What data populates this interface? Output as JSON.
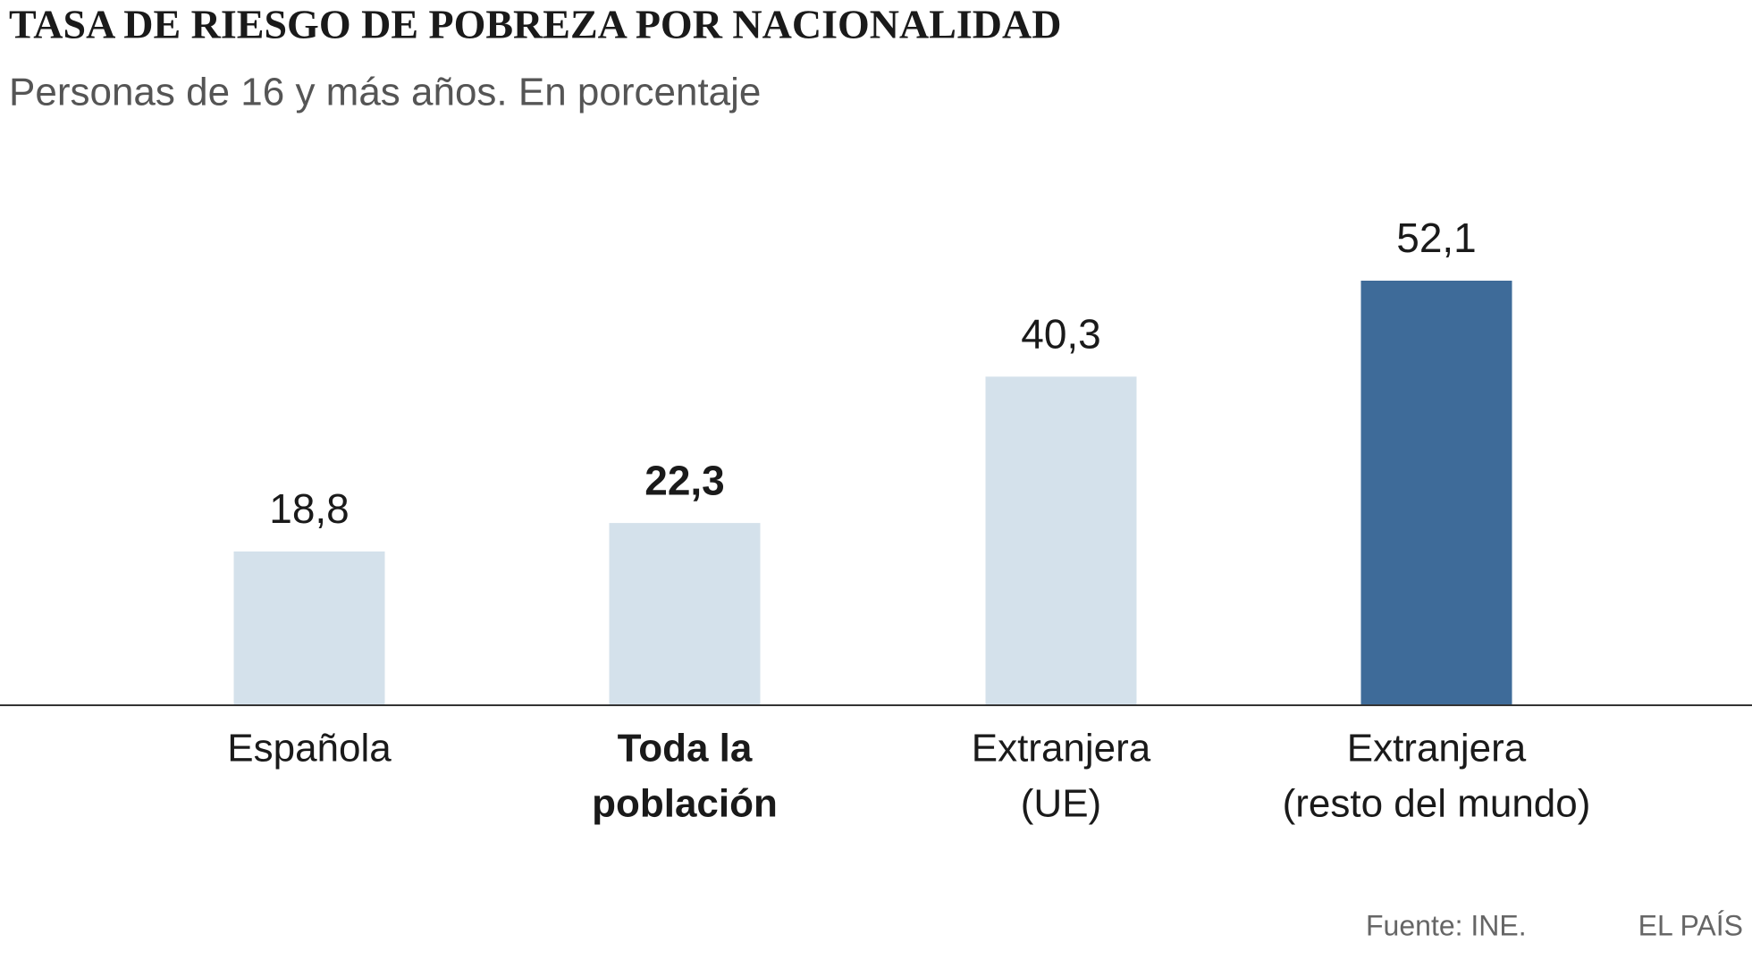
{
  "chart_data": {
    "type": "bar",
    "title": "TASA DE RIESGO DE POBREZA POR NACIONALIDAD",
    "subtitle": "Personas de 16 y más años. En porcentaje",
    "categories": [
      [
        "Española"
      ],
      [
        "Toda la",
        "población"
      ],
      [
        "Extranjera",
        "(UE)"
      ],
      [
        "Extranjera",
        "(resto del mundo)"
      ]
    ],
    "values": [
      18.8,
      22.3,
      40.3,
      52.1
    ],
    "value_labels": [
      "18,8",
      "22,3",
      "40,3",
      "52,1"
    ],
    "colors": [
      "#d4e1eb",
      "#d4e1eb",
      "#d4e1eb",
      "#3e6b99"
    ],
    "emphasis": [
      false,
      true,
      false,
      false
    ],
    "source": "Fuente: INE.",
    "brand": "EL PAÍS"
  }
}
